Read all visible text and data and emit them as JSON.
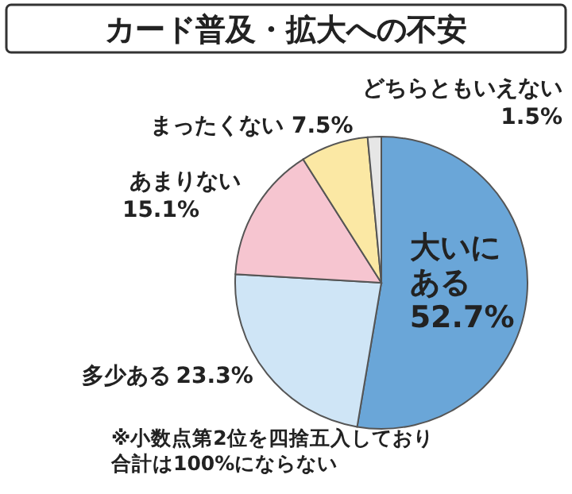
{
  "chart_data": {
    "type": "pie",
    "title": "カード普及・拡大への不安",
    "categories": [
      "大いにある",
      "多少ある",
      "あまりない",
      "まったくない",
      "どちらともいえない"
    ],
    "values": [
      52.7,
      23.3,
      15.1,
      7.5,
      1.5
    ],
    "colors": [
      "#6aa6d8",
      "#cfe5f6",
      "#f6c5d0",
      "#fbe8a4",
      "#e6e6e6"
    ],
    "value_labels": [
      "52.7%",
      "23.3%",
      "15.1%",
      "7.5%",
      "1.5%"
    ],
    "annotations": [
      "※小数点第2位を四捨五入しており",
      "合計は100%にならない"
    ]
  }
}
